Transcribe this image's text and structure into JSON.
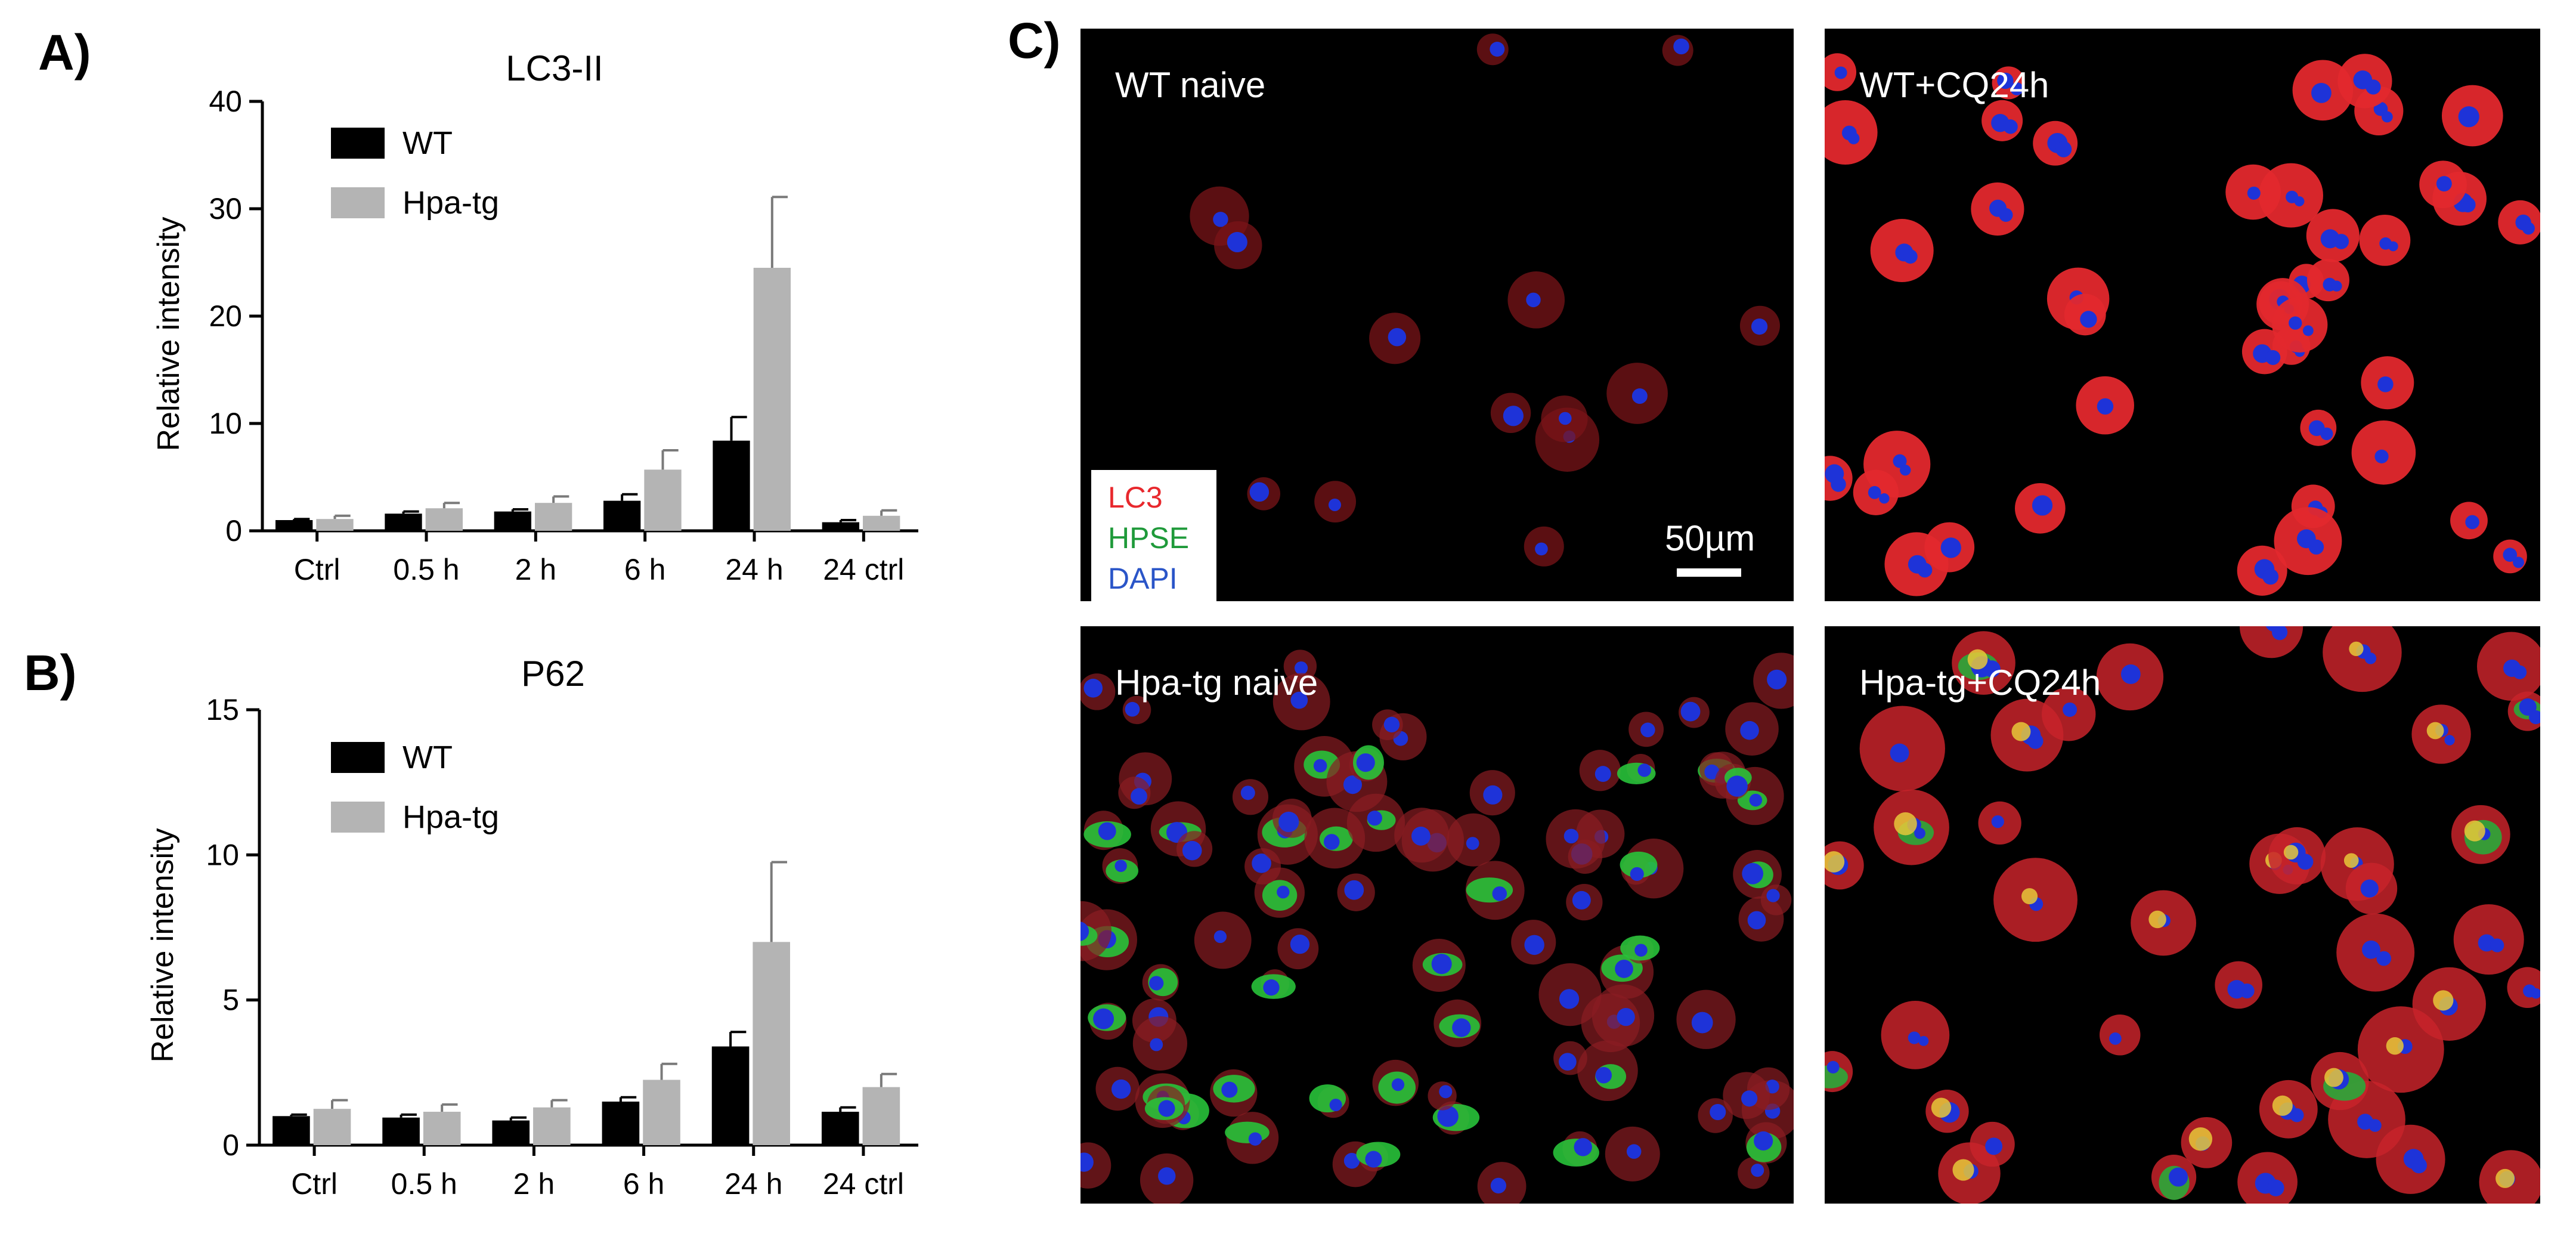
{
  "panels": {
    "a": "A)",
    "b": "B)",
    "c": "C)"
  },
  "chart_data": [
    {
      "type": "bar",
      "title": "LC3-II",
      "ylabel": "Relative intensity",
      "xlabel": "",
      "ylim": [
        0,
        40
      ],
      "yticks": [
        0,
        10,
        20,
        30,
        40
      ],
      "categories": [
        "Ctrl",
        "0.5 h",
        "2 h",
        "6 h",
        "24 h",
        "24 ctrl"
      ],
      "series": [
        {
          "name": "WT",
          "color": "#000000",
          "values": [
            1.0,
            1.6,
            1.8,
            2.8,
            8.4,
            0.8
          ],
          "errors": [
            0.1,
            0.2,
            0.2,
            0.6,
            2.2,
            0.2
          ]
        },
        {
          "name": "Hpa-tg",
          "color": "#b4b4b4",
          "values": [
            1.1,
            2.1,
            2.6,
            5.7,
            24.5,
            1.4
          ],
          "errors": [
            0.3,
            0.5,
            0.6,
            1.8,
            6.6,
            0.5
          ]
        }
      ],
      "legend": "top-left",
      "grid": false
    },
    {
      "type": "bar",
      "title": "P62",
      "ylabel": "Relative intensity",
      "xlabel": "",
      "ylim": [
        0,
        15
      ],
      "yticks": [
        0,
        5,
        10,
        15
      ],
      "categories": [
        "Ctrl",
        "0.5 h",
        "2 h",
        "6 h",
        "24 h",
        "24 ctrl"
      ],
      "series": [
        {
          "name": "WT",
          "color": "#000000",
          "values": [
            1.0,
            0.95,
            0.85,
            1.5,
            3.4,
            1.15
          ],
          "errors": [
            0.05,
            0.1,
            0.1,
            0.15,
            0.5,
            0.15
          ]
        },
        {
          "name": "Hpa-tg",
          "color": "#b4b4b4",
          "values": [
            1.25,
            1.15,
            1.3,
            2.25,
            7.0,
            2.0
          ],
          "errors": [
            0.3,
            0.25,
            0.25,
            0.55,
            2.75,
            0.45
          ]
        }
      ],
      "legend": "top-left",
      "grid": false
    }
  ],
  "micrographs": [
    {
      "label": "WT naive"
    },
    {
      "label": "WT+CQ24h"
    },
    {
      "label": "Hpa-tg naive"
    },
    {
      "label": "Hpa-tg+CQ24h"
    }
  ],
  "stain_legend": [
    {
      "text": "LC3",
      "color": "#e8282d"
    },
    {
      "text": "HPSE",
      "color": "#1f9a3a"
    },
    {
      "text": "DAPI",
      "color": "#2a55c8"
    }
  ],
  "scale_bar": "50µm"
}
